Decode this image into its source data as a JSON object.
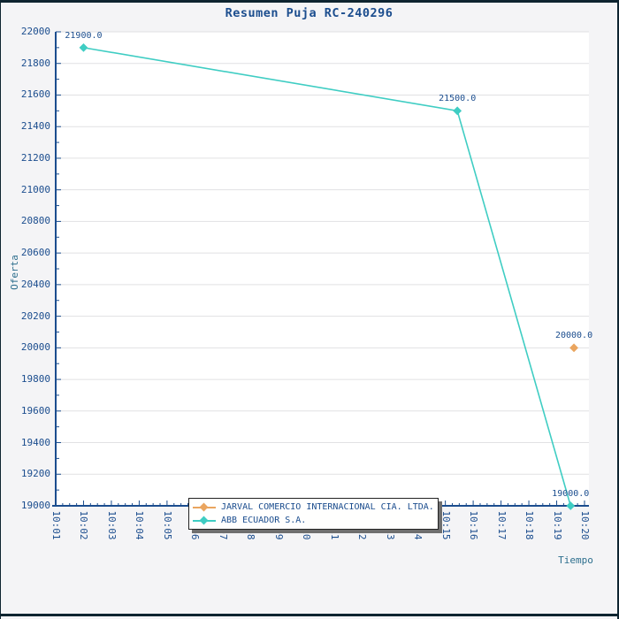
{
  "colors": {
    "frame": "#0e2430",
    "background": "#f4f4f6",
    "plot_background": "#ffffff",
    "grid": "#e1e1e3",
    "axis": "#1b4d8e",
    "tick_text": "#1b4d8e",
    "axis_title_text": "#2e6f8e",
    "title_text": "#1b4d8e",
    "legend_border": "#222222",
    "legend_shadow": "#6f6f6f"
  },
  "chart_data": {
    "type": "line",
    "title": "Resumen Puja RC-240296",
    "xlabel": "Tiempo",
    "ylabel": "Oferta",
    "grid": "horizontal",
    "legend_position": "bottom-center",
    "ylim": [
      19000,
      22000
    ],
    "y_tick_step": 200,
    "y_minor_step": 100,
    "y_ticks": [
      19000,
      19200,
      19400,
      19600,
      19800,
      20000,
      20200,
      20400,
      20600,
      20800,
      21000,
      21200,
      21400,
      21600,
      21800,
      22000
    ],
    "x_tick_labels": [
      "10:01",
      "10:02",
      "10:03",
      "10:04",
      "10:05",
      "10:06",
      "10:07",
      "10:08",
      "10:09",
      "10:10",
      "10:11",
      "10:12",
      "10:13",
      "10:14",
      "10:15",
      "10:16",
      "10:17",
      "10:18",
      "10:19",
      "10:20"
    ],
    "x_minor_step_minutes": 0.25,
    "series": [
      {
        "name": "JARVAL COMERCIO INTERNACIONAL CIA. LTDA.",
        "color": "#eaa55f",
        "marker": "diamond",
        "points": [
          {
            "x_time": "10:19:37",
            "x_minute": 19.62,
            "y": 20000.0,
            "point_label": "20000.0"
          }
        ]
      },
      {
        "name": "ABB ECUADOR S.A.",
        "color": "#3fcdc3",
        "marker": "diamond",
        "points": [
          {
            "x_time": "10:02:00",
            "x_minute": 2.0,
            "y": 21900.0,
            "point_label": "21900.0"
          },
          {
            "x_time": "10:15:26",
            "x_minute": 15.43,
            "y": 21500.0,
            "point_label": "21500.0"
          },
          {
            "x_time": "10:19:30",
            "x_minute": 19.5,
            "y": 19000.0,
            "point_label": "19000.0"
          }
        ]
      }
    ]
  }
}
